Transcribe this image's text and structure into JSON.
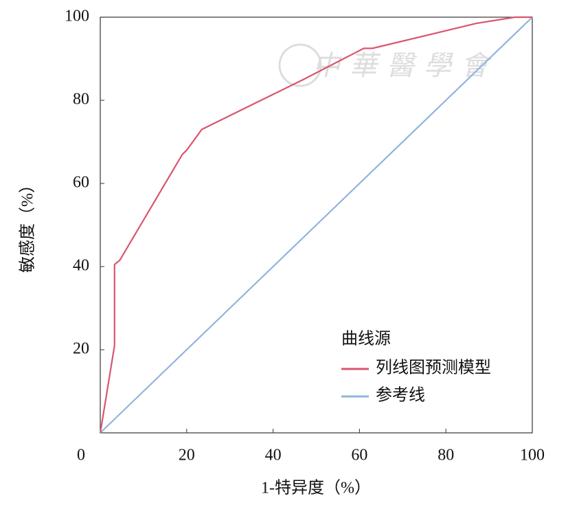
{
  "chart_data": {
    "type": "line",
    "watermark": "中華醫學會",
    "x_label": "1-特异度（%）",
    "y_label": "敏感度（%）",
    "legend_title": "曲线源",
    "legend_position": "lower right",
    "xlim": [
      0,
      100
    ],
    "ylim": [
      0,
      100
    ],
    "xticks": [
      0,
      20,
      40,
      60,
      80,
      100
    ],
    "yticks": [
      20,
      40,
      60,
      80,
      100
    ],
    "series": [
      {
        "name": "列线图预测模型",
        "color": "#d9546e",
        "x": [
          0,
          3.3,
          3.3,
          4.5,
          19,
          20,
          23.5,
          47,
          61,
          63,
          87,
          96,
          100
        ],
        "values": [
          0,
          21,
          40.5,
          41.5,
          67,
          68,
          73,
          85,
          92.5,
          92.5,
          98.5,
          100,
          100
        ]
      },
      {
        "name": "参考线",
        "color": "#8fb4de",
        "x": [
          0,
          100
        ],
        "values": [
          0,
          100
        ]
      }
    ]
  }
}
